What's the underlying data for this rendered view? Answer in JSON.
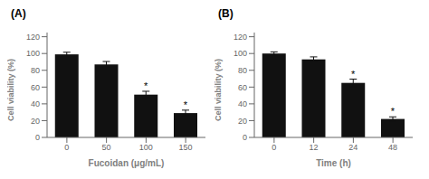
{
  "chart_data": [
    {
      "type": "bar",
      "title": "(A)",
      "categories": [
        "0",
        "50",
        "100",
        "150"
      ],
      "values": [
        99,
        87,
        51,
        29
      ],
      "errors": [
        2.5,
        3.5,
        4.0,
        3.5
      ],
      "annotations": [
        {
          "category": "100",
          "text": "*"
        },
        {
          "category": "150",
          "text": "*"
        }
      ],
      "x_label": "Fucoidan (μg/mL)",
      "y_label": "Cell viability (%)",
      "ylim": [
        0,
        125
      ],
      "yticks": [
        0,
        20,
        40,
        60,
        80,
        100,
        120
      ],
      "color": "#111111"
    },
    {
      "type": "bar",
      "title": "(B)",
      "categories": [
        "0",
        "12",
        "24",
        "48"
      ],
      "values": [
        100,
        93,
        65,
        22
      ],
      "errors": [
        2.0,
        3.0,
        4.5,
        2.5
      ],
      "annotations": [
        {
          "category": "24",
          "text": "*"
        },
        {
          "category": "48",
          "text": "*"
        }
      ],
      "x_label": "Time (h)",
      "y_label": "Cell viability (%)",
      "ylim": [
        0,
        125
      ],
      "yticks": [
        0,
        20,
        40,
        60,
        80,
        100,
        120
      ],
      "color": "#111111"
    }
  ]
}
